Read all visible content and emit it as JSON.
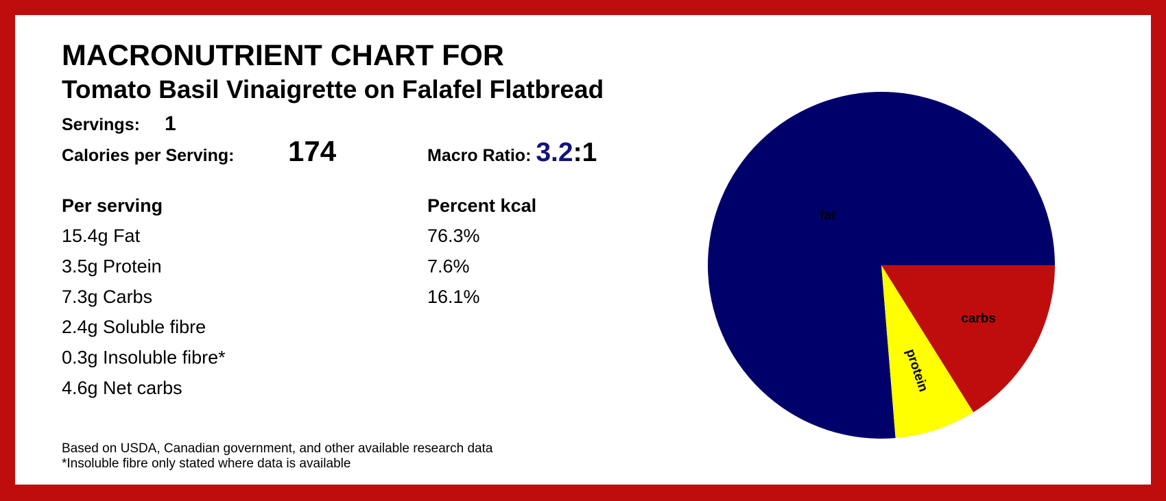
{
  "title": "MACRONUTRIENT CHART FOR",
  "subtitle": "Tomato Basil Vinaigrette on Falafel Flatbread",
  "servings": {
    "label": "Servings:",
    "value": 1
  },
  "calories": {
    "label": "Calories per Serving:",
    "value": 174
  },
  "macro_ratio": {
    "label": "Macro Ratio:",
    "value": 3.2,
    "rest": ":1"
  },
  "per_serving": {
    "heading": "Per serving",
    "items": [
      "15.4g Fat",
      "3.5g Protein",
      "7.3g Carbs",
      "2.4g Soluble fibre",
      "0.3g Insoluble fibre*",
      "4.6g Net carbs"
    ]
  },
  "percent_kcal": {
    "heading": "Percent kcal",
    "items": [
      "76.3%",
      "7.6%",
      "16.1%"
    ]
  },
  "notes": [
    "Based on USDA, Canadian government, and other available research data",
    "*Insoluble fibre only stated where data is available"
  ],
  "chart_data": {
    "type": "pie",
    "categories": [
      "fat",
      "protein",
      "carbs"
    ],
    "values": [
      76.3,
      7.6,
      16.1
    ],
    "colors": [
      "#00006b",
      "#ffff00",
      "#bf0d0d"
    ],
    "label_colors": [
      "#ffff00",
      "#00006b",
      "#ffff00"
    ]
  }
}
